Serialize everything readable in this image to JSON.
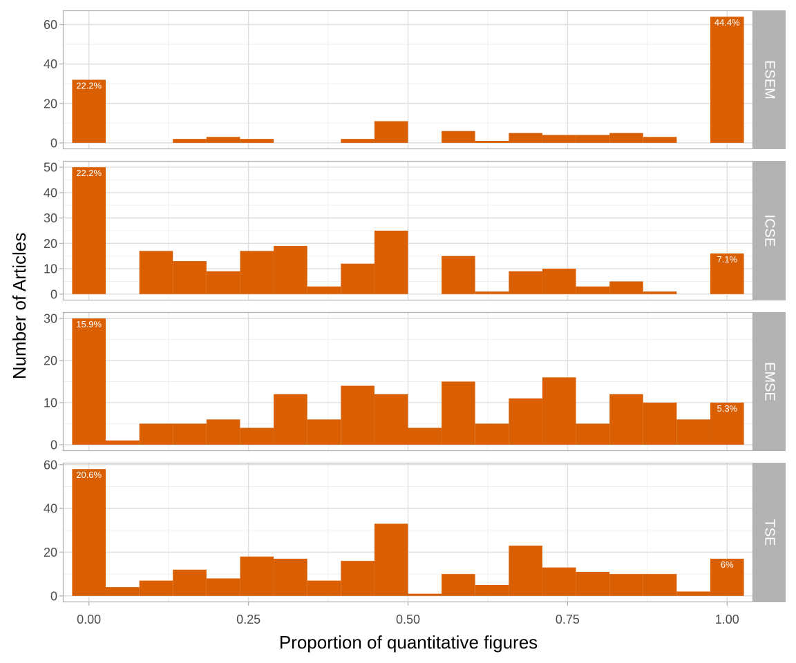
{
  "chart_data": {
    "type": "bar",
    "xlabel": "Proportion of quantitative figures",
    "ylabel": "Number of Articles",
    "x_ticks": [
      "0.00",
      "0.25",
      "0.50",
      "0.75",
      "1.00"
    ],
    "xlim": [
      -0.0408,
      1.0408
    ],
    "bin_width": 0.0526,
    "bin_centers": [
      0.0,
      0.0526,
      0.1053,
      0.1579,
      0.2105,
      0.2632,
      0.3158,
      0.3684,
      0.4211,
      0.4737,
      0.5263,
      0.5789,
      0.6316,
      0.6842,
      0.7368,
      0.7895,
      0.8421,
      0.8947,
      0.9474,
      1.0
    ],
    "bar_color": "#D95F02",
    "strip_color": "#B3B3B3",
    "facets": [
      {
        "name": "ESEM",
        "ylim": [
          -3.2,
          67.2
        ],
        "y_ticks": [
          0,
          20,
          40,
          60
        ],
        "values": [
          32,
          0,
          0,
          2,
          3,
          2,
          0,
          0,
          2,
          11,
          0,
          6,
          1,
          5,
          4,
          4,
          5,
          3,
          0,
          64
        ],
        "labels": [
          {
            "bin": 0,
            "text": "22.2%"
          },
          {
            "bin": 19,
            "text": "44.4%"
          }
        ]
      },
      {
        "name": "ICSE",
        "ylim": [
          -2.5,
          52.5
        ],
        "y_ticks": [
          0,
          10,
          20,
          30,
          40,
          50
        ],
        "values": [
          50,
          0,
          17,
          13,
          9,
          17,
          19,
          3,
          12,
          25,
          0,
          15,
          1,
          9,
          10,
          3,
          5,
          1,
          0,
          16
        ],
        "labels": [
          {
            "bin": 0,
            "text": "22.2%"
          },
          {
            "bin": 19,
            "text": "7.1%"
          }
        ]
      },
      {
        "name": "EMSE",
        "ylim": [
          -1.5,
          31.5
        ],
        "y_ticks": [
          0,
          10,
          20,
          30
        ],
        "values": [
          30,
          1,
          5,
          5,
          6,
          4,
          12,
          6,
          14,
          12,
          4,
          15,
          5,
          11,
          16,
          5,
          12,
          10,
          6,
          10
        ],
        "labels": [
          {
            "bin": 0,
            "text": "15.9%"
          },
          {
            "bin": 19,
            "text": "5.3%"
          }
        ]
      },
      {
        "name": "TSE",
        "ylim": [
          -2.9,
          60.9
        ],
        "y_ticks": [
          0,
          20,
          40,
          60
        ],
        "values": [
          58,
          4,
          7,
          12,
          8,
          18,
          17,
          7,
          16,
          33,
          1,
          10,
          5,
          23,
          13,
          11,
          10,
          10,
          2,
          17
        ],
        "labels": [
          {
            "bin": 0,
            "text": "20.6%"
          },
          {
            "bin": 19,
            "text": "6%"
          }
        ]
      }
    ]
  }
}
